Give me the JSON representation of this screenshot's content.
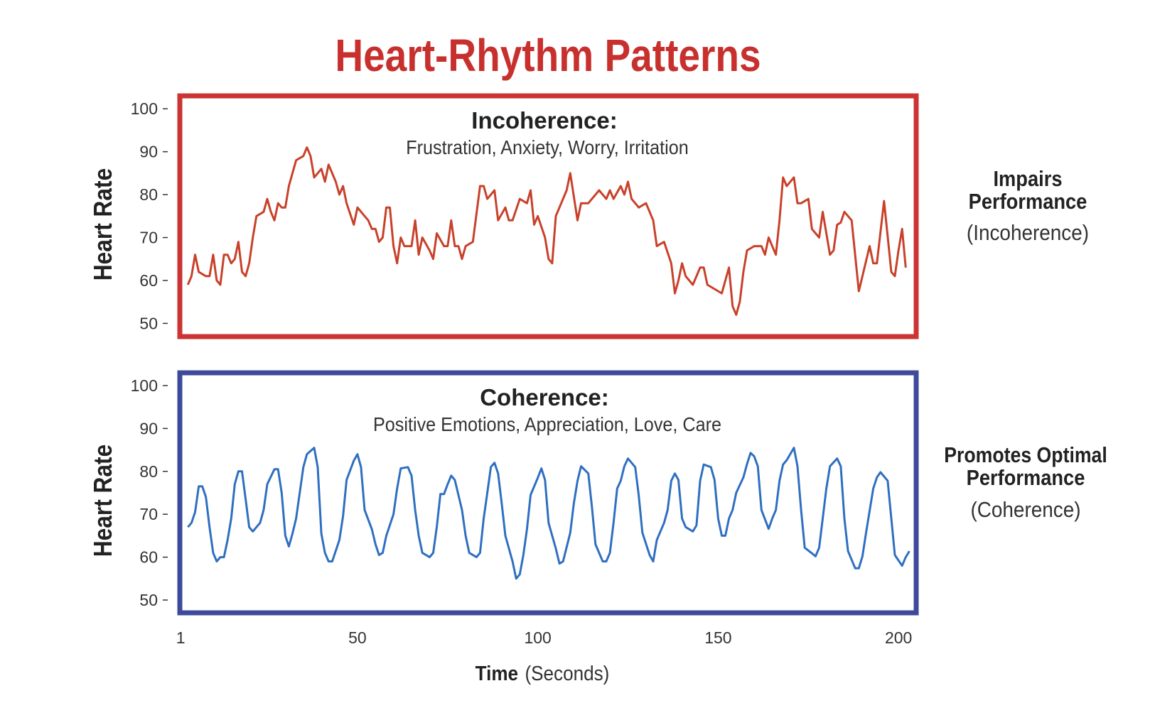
{
  "chart_data": [
    {
      "type": "line",
      "title": "Heart-Rhythm Patterns",
      "panel_title": "Incoherence:",
      "panel_subtitle": "Frustration, Anxiety, Worry, Irritation",
      "side_label_bold": [
        "Impairs",
        "Performance"
      ],
      "side_label_note": "(Incoherence)",
      "ylabel": "Heart Rate",
      "yticks": [
        100,
        90,
        80,
        70,
        60,
        50
      ],
      "ylim": [
        50,
        100
      ],
      "line_color": "#c8412a",
      "frame_color": "#cc3333",
      "x": [
        3,
        4,
        5,
        6,
        8,
        9,
        10,
        11,
        12,
        13,
        14,
        15,
        16,
        17,
        18,
        19,
        20,
        21,
        22,
        24,
        25,
        26,
        27,
        28,
        29,
        30,
        31,
        33,
        35,
        36,
        37,
        38,
        40,
        41,
        42,
        44,
        45,
        46,
        47,
        49,
        50,
        52,
        53,
        54,
        55,
        56,
        57,
        58,
        59,
        60,
        61,
        62,
        63,
        65,
        66,
        67,
        68,
        70,
        71,
        72,
        74,
        75,
        76,
        77,
        78,
        79,
        80,
        82,
        84,
        85,
        86,
        88,
        89,
        91,
        92,
        93,
        95,
        97,
        98,
        99,
        100,
        102,
        103,
        104,
        105,
        106,
        108,
        109,
        111,
        112,
        114,
        115,
        117,
        119,
        120,
        121,
        123,
        124,
        125,
        126,
        128,
        130,
        132,
        133,
        135,
        137,
        138,
        139,
        140,
        141,
        143,
        145,
        146,
        147,
        149,
        151,
        152,
        153,
        154,
        155,
        156,
        157,
        158,
        160,
        162,
        163,
        164,
        166,
        167,
        168,
        169,
        171,
        172,
        173,
        175,
        176,
        177,
        178,
        179,
        181,
        182,
        183,
        184,
        185,
        186,
        187,
        189,
        190,
        192,
        193,
        194,
        196,
        198,
        199,
        200,
        201,
        202
      ],
      "y": [
        59,
        61,
        66,
        62,
        61,
        61,
        66,
        60,
        59,
        66,
        66,
        64,
        65,
        69,
        62,
        61,
        64,
        70,
        75,
        76,
        79,
        76,
        74,
        78,
        77,
        77,
        82,
        88,
        89,
        91,
        89,
        84,
        86,
        83,
        87,
        83,
        80,
        82,
        78,
        73,
        77,
        75,
        74,
        72,
        72,
        69,
        70,
        77,
        77,
        68,
        64,
        70,
        68,
        68,
        74,
        66,
        70,
        67,
        65,
        71,
        68,
        68,
        74,
        68,
        68,
        65,
        68,
        69,
        82,
        82,
        79,
        81,
        74,
        77,
        74,
        74,
        79,
        78,
        81,
        73,
        75,
        70,
        65,
        64,
        75,
        77,
        81,
        85,
        74,
        78,
        78,
        79,
        81,
        79,
        81,
        79,
        82,
        80,
        83,
        79,
        77,
        78,
        74,
        68,
        69,
        64,
        57,
        60,
        64,
        61,
        59,
        63,
        63,
        59,
        58,
        57,
        60,
        63,
        54,
        52,
        55,
        62,
        67,
        68,
        68,
        66,
        70,
        66,
        74,
        84,
        82,
        84,
        78,
        78,
        79,
        72,
        71,
        70,
        76,
        66,
        67,
        73,
        73.5,
        76,
        75,
        74,
        57.5,
        61,
        68,
        64,
        64,
        78.5,
        62,
        61,
        67,
        72,
        63
      ]
    },
    {
      "type": "line",
      "panel_title": "Coherence:",
      "panel_subtitle": "Positive Emotions, Appreciation, Love, Care",
      "side_label_bold": [
        "Promotes Optimal",
        "Performance"
      ],
      "side_label_note": "(Coherence)",
      "ylabel": "Heart Rate",
      "yticks": [
        100,
        90,
        80,
        70,
        60,
        50
      ],
      "ylim": [
        50,
        100
      ],
      "xlabel_bold": "Time",
      "xlabel_note": "(Seconds)",
      "xticks": [
        1,
        50,
        100,
        150,
        200
      ],
      "line_color": "#2f6fc0",
      "frame_color": "#3d4a9a",
      "x": [
        3,
        4,
        5,
        6,
        7,
        8,
        9,
        10,
        11,
        12,
        13,
        14,
        15,
        16,
        17,
        18,
        19,
        20,
        21,
        22,
        23,
        24,
        25,
        27,
        28,
        29,
        30,
        31,
        32,
        33,
        35,
        36,
        38,
        39,
        40,
        41,
        42,
        43,
        45,
        46,
        47,
        49,
        50,
        51,
        52,
        54,
        55,
        56,
        57,
        58,
        60,
        61,
        62,
        64,
        65,
        66,
        67,
        68,
        70,
        71,
        72,
        73,
        74,
        75,
        76,
        77,
        79,
        80,
        81,
        83,
        84,
        85,
        86,
        87,
        88,
        89,
        90,
        91,
        93,
        94,
        95,
        96,
        97,
        98,
        100,
        101,
        102,
        103,
        105,
        106,
        107,
        109,
        110,
        111,
        112,
        114,
        115,
        116,
        118,
        119,
        120,
        121,
        122,
        123,
        124,
        125,
        127,
        128,
        129,
        131,
        132,
        133,
        135,
        136,
        137,
        138,
        139,
        140,
        141,
        143,
        144,
        145,
        146,
        148,
        149,
        150,
        151,
        152,
        153,
        154,
        155,
        157,
        158,
        159,
        160,
        161,
        162,
        164,
        165,
        166,
        167,
        168,
        169,
        171,
        172,
        173,
        174,
        176,
        177,
        178,
        179,
        180,
        181,
        183,
        184,
        185,
        186,
        188,
        189,
        190,
        191,
        193,
        194,
        195,
        197,
        198,
        199,
        201,
        202,
        203
      ],
      "y": [
        67,
        68,
        70.5,
        76.5,
        76.5,
        74,
        67,
        61,
        59,
        60,
        60,
        64,
        69,
        77,
        80,
        80,
        73.5,
        67,
        66,
        67,
        68,
        71,
        77,
        80.5,
        80.5,
        75,
        65,
        62.5,
        65.5,
        69,
        81,
        84,
        85.5,
        81,
        65.5,
        61,
        59,
        59,
        64,
        69.5,
        78,
        82.5,
        84,
        81,
        71,
        66.5,
        63,
        60.5,
        61,
        65,
        70,
        76,
        80.7,
        81,
        79,
        71,
        65,
        61,
        60,
        61,
        67,
        74.7,
        74.7,
        77,
        79,
        78,
        71,
        65,
        61,
        60,
        61,
        69,
        75,
        81,
        82,
        79.5,
        72.5,
        65,
        59,
        55,
        56,
        60.5,
        66.5,
        74.5,
        78.5,
        80.7,
        78,
        68,
        62,
        58.5,
        59,
        65.7,
        72.6,
        77.8,
        81.2,
        79.5,
        71.7,
        63,
        59,
        59,
        61,
        68,
        76,
        77.8,
        81.2,
        83,
        81,
        74.3,
        65.7,
        60.5,
        59,
        64,
        68,
        71,
        77.8,
        79.5,
        78,
        69,
        67,
        66,
        67.4,
        77.8,
        81.6,
        81,
        78,
        69,
        65,
        65,
        69,
        71,
        75,
        78.6,
        81.7,
        84.3,
        83.5,
        81.2,
        71,
        66.6,
        69,
        71,
        77.8,
        81.6,
        82.6,
        85.5,
        81.2,
        71,
        62.2,
        60.9,
        60.2,
        62.2,
        69,
        76,
        81.2,
        83,
        81.2,
        69,
        61.4,
        57.4,
        57.4,
        60.2,
        65.7,
        76,
        78.6,
        79.8,
        77.8,
        69,
        60.5,
        58,
        60,
        61.4
      ]
    }
  ]
}
